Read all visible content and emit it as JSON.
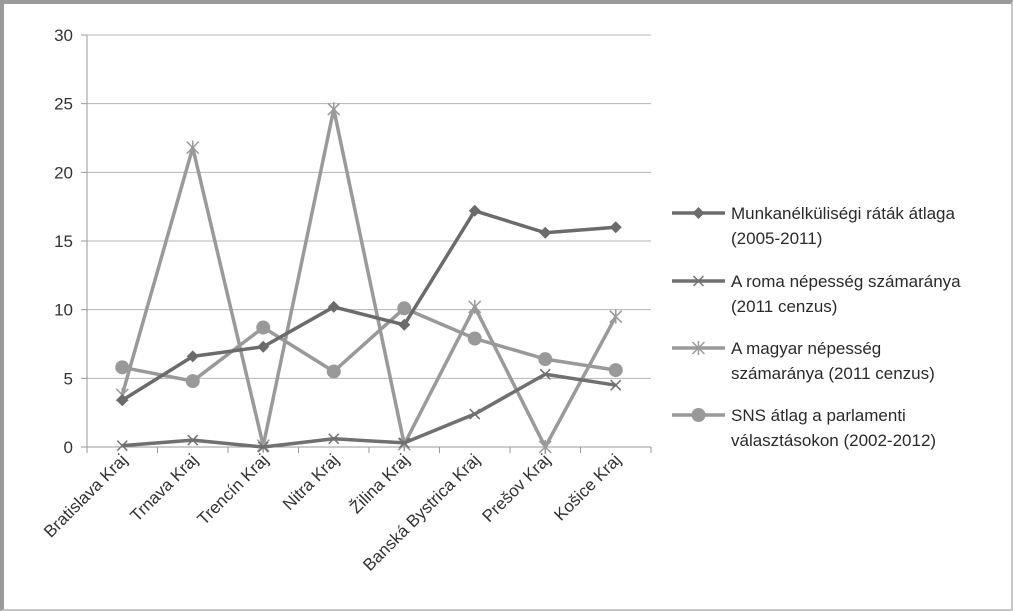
{
  "chart_data": {
    "type": "line",
    "title": "",
    "xlabel": "",
    "ylabel": "",
    "ylim": [
      0,
      30
    ],
    "yticks": [
      "0",
      "5",
      "10",
      "15",
      "20",
      "25",
      "30"
    ],
    "grid": true,
    "legend_position": "right",
    "categories": [
      "Bratislava Kraj",
      "Trnava Kraj",
      "Trencín Kraj",
      "Nitra Kraj",
      "Žilina Kraj",
      "Banská Bystrica Kraj",
      "Prešov Kraj",
      "Košice Kraj"
    ],
    "series": [
      {
        "name_lines": [
          "Munkanélküliségi ráták átlaga",
          "(2005-2011)"
        ],
        "marker": "diamond",
        "color": "#6b6b6b",
        "values": [
          3.4,
          6.6,
          7.3,
          10.2,
          8.9,
          17.2,
          15.6,
          16.0
        ]
      },
      {
        "name_lines": [
          "A roma népesség számaránya",
          "(2011 cenzus)"
        ],
        "marker": "x",
        "color": "#707070",
        "values": [
          0.1,
          0.5,
          0.0,
          0.6,
          0.3,
          2.4,
          5.3,
          4.5
        ]
      },
      {
        "name_lines": [
          "A magyar népesség",
          "számaránya (2011 cenzus)"
        ],
        "marker": "star",
        "color": "#9a9a9a",
        "values": [
          3.8,
          21.8,
          0.1,
          24.6,
          0.2,
          10.2,
          0.0,
          9.5
        ]
      },
      {
        "name_lines": [
          "SNS átlag a parlamenti",
          "választásokon (2002-2012)"
        ],
        "marker": "circle",
        "color": "#999999",
        "values": [
          5.8,
          4.8,
          8.7,
          5.5,
          10.1,
          7.9,
          6.4,
          5.6
        ]
      }
    ]
  }
}
